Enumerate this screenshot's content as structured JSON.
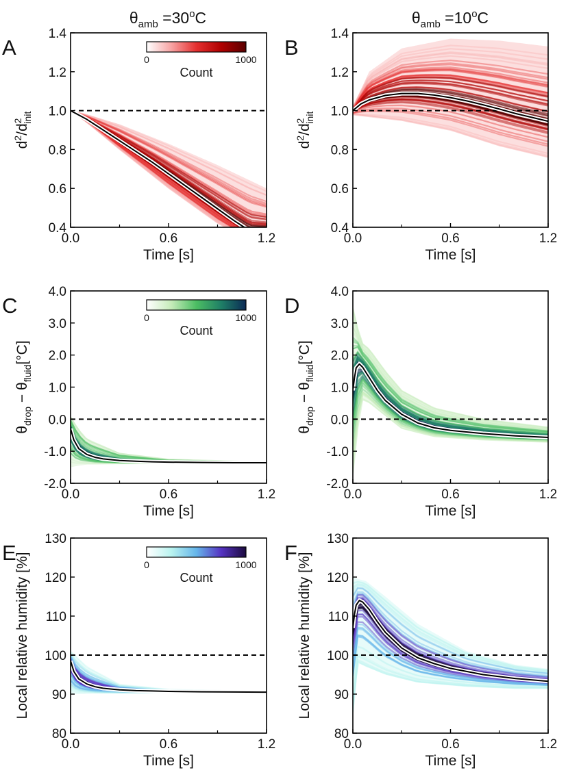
{
  "columns": [
    {
      "var": "θ",
      "sub": "amb",
      "value": "=30",
      "sup": "o",
      "unit": "C"
    },
    {
      "var": "θ",
      "sub": "amb",
      "value": "=10",
      "sup": "o",
      "unit": "C"
    }
  ],
  "colors": {
    "red": [
      "#ffffff",
      "#f7a3a3",
      "#e53030",
      "#b00000",
      "#5a0000"
    ],
    "green": [
      "#ffffff",
      "#c5ebb9",
      "#4cbd63",
      "#1f7f66",
      "#0b2a55"
    ],
    "purple": [
      "#ffffff",
      "#b9f3ef",
      "#66b6ea",
      "#5533c2",
      "#1c0a3e"
    ],
    "median": "#000000",
    "reference": "#000000"
  },
  "chart_data": [
    {
      "id": "A",
      "row": 0,
      "col": 0,
      "type": "line",
      "cmap": "red",
      "density_seed": 11,
      "xlabel": "Time [s]",
      "ylabel": "d²/d²init",
      "ylabel_parts": {
        "base": "d",
        "sup": "2",
        "mid": "/d",
        "sup2": "2",
        "sub2": "init"
      },
      "xlim": [
        0,
        1.2
      ],
      "ylim": [
        0.4,
        1.4
      ],
      "xticks": [
        "0.0",
        "0.6",
        "1.2"
      ],
      "xtick_values": [
        0,
        0.6,
        1.2
      ],
      "yticks": [
        "0.4",
        "0.6",
        "0.8",
        "1.0",
        "1.2",
        "1.4"
      ],
      "ytick_values": [
        0.4,
        0.6,
        0.8,
        1.0,
        1.2,
        1.4
      ],
      "reference_line": {
        "y": 1.0,
        "style": "dashed"
      },
      "median": {
        "x": [
          0,
          0.1,
          0.2,
          0.3,
          0.4,
          0.5,
          0.6,
          0.7,
          0.8,
          0.9,
          1.0,
          1.1
        ],
        "y": [
          1.0,
          0.955,
          0.9,
          0.845,
          0.79,
          0.735,
          0.675,
          0.615,
          0.555,
          0.495,
          0.435,
          0.38
        ]
      },
      "spread": {
        "x": [
          0,
          0.1,
          0.3,
          0.6,
          0.9,
          1.2
        ],
        "lo": [
          1.0,
          0.94,
          0.8,
          0.6,
          0.42,
          0.28
        ],
        "hi": [
          1.0,
          0.98,
          0.93,
          0.83,
          0.72,
          0.6
        ]
      },
      "colorbar": {
        "label": "Count",
        "min": "0",
        "max": "1000"
      }
    },
    {
      "id": "B",
      "row": 0,
      "col": 1,
      "type": "line",
      "cmap": "red",
      "density_seed": 23,
      "xlabel": "Time [s]",
      "ylabel": "d²/d²init",
      "ylabel_parts": {
        "base": "d",
        "sup": "2",
        "mid": "/d",
        "sup2": "2",
        "sub2": "init"
      },
      "xlim": [
        0,
        1.2
      ],
      "ylim": [
        0.4,
        1.4
      ],
      "xticks": [
        "0.0",
        "0.6",
        "1.2"
      ],
      "xtick_values": [
        0,
        0.6,
        1.2
      ],
      "yticks": [
        "0.4",
        "0.6",
        "0.8",
        "1.0",
        "1.2",
        "1.4"
      ],
      "ytick_values": [
        0.4,
        0.6,
        0.8,
        1.0,
        1.2,
        1.4
      ],
      "reference_line": {
        "y": 1.0,
        "style": "dashed"
      },
      "median": {
        "x": [
          0,
          0.05,
          0.1,
          0.2,
          0.3,
          0.4,
          0.5,
          0.6,
          0.7,
          0.8,
          0.9,
          1.0,
          1.1,
          1.2
        ],
        "y": [
          1.0,
          1.035,
          1.055,
          1.078,
          1.088,
          1.088,
          1.08,
          1.067,
          1.05,
          1.03,
          1.008,
          0.985,
          0.965,
          0.945
        ]
      },
      "spread": {
        "x": [
          0,
          0.1,
          0.3,
          0.6,
          0.9,
          1.2
        ],
        "lo": [
          0.98,
          0.97,
          0.95,
          0.9,
          0.82,
          0.76
        ],
        "hi": [
          1.02,
          1.2,
          1.32,
          1.37,
          1.36,
          1.33
        ]
      },
      "colorbar": null
    },
    {
      "id": "C",
      "row": 1,
      "col": 0,
      "type": "line",
      "cmap": "green",
      "density_seed": 37,
      "xlabel": "Time [s]",
      "ylabel": "θdrop − θfluid[°C]",
      "ylabel_parts": {
        "a": "θ",
        "asub": "drop",
        "op": " − θ",
        "bsub": "fluid",
        "unit": "[°C]"
      },
      "xlim": [
        0,
        1.2
      ],
      "ylim": [
        -2.0,
        4.0
      ],
      "xticks": [
        "0.0",
        "0.6",
        "1.2"
      ],
      "xtick_values": [
        0,
        0.6,
        1.2
      ],
      "yticks": [
        "-2.0",
        "-1.0",
        "0.0",
        "1.0",
        "2.0",
        "3.0",
        "4.0"
      ],
      "ytick_values": [
        -2,
        -1,
        0,
        1,
        2,
        3,
        4
      ],
      "reference_line": {
        "y": 0.0,
        "style": "dashed"
      },
      "median": {
        "x": [
          0,
          0.02,
          0.05,
          0.1,
          0.15,
          0.2,
          0.3,
          0.4,
          0.5,
          0.6,
          0.8,
          1.0,
          1.2
        ],
        "y": [
          -0.3,
          -0.65,
          -0.92,
          -1.1,
          -1.19,
          -1.24,
          -1.29,
          -1.31,
          -1.33,
          -1.34,
          -1.35,
          -1.36,
          -1.36
        ]
      },
      "spread": {
        "x": [
          0,
          0.05,
          0.1,
          0.3,
          0.6,
          1.2
        ],
        "lo": [
          -1.5,
          -1.45,
          -1.42,
          -1.4,
          -1.38,
          -1.37
        ],
        "hi": [
          0.1,
          -0.3,
          -0.6,
          -1.05,
          -1.25,
          -1.34
        ]
      },
      "colorbar": {
        "label": "Count",
        "min": "0",
        "max": "1000"
      }
    },
    {
      "id": "D",
      "row": 1,
      "col": 1,
      "type": "line",
      "cmap": "green",
      "density_seed": 41,
      "xlabel": "Time [s]",
      "ylabel": "θdrop − θfluid[°C]",
      "ylabel_parts": {
        "a": "θ",
        "asub": "drop",
        "op": " − θ",
        "bsub": "fluid",
        "unit": "[°C]"
      },
      "xlim": [
        0,
        1.2
      ],
      "ylim": [
        -2.0,
        4.0
      ],
      "xticks": [
        "0.0",
        "0.6",
        "1.2"
      ],
      "xtick_values": [
        0,
        0.6,
        1.2
      ],
      "yticks": [
        "-2.0",
        "-1.0",
        "0.0",
        "1.0",
        "2.0",
        "3.0",
        "4.0"
      ],
      "ytick_values": [
        -2,
        -1,
        0,
        1,
        2,
        3,
        4
      ],
      "reference_line": {
        "y": 0.0,
        "style": "dashed"
      },
      "median": {
        "x": [
          0,
          0.01,
          0.02,
          0.04,
          0.06,
          0.1,
          0.15,
          0.2,
          0.3,
          0.4,
          0.5,
          0.6,
          0.8,
          1.0,
          1.2
        ],
        "y": [
          0.9,
          1.3,
          1.6,
          1.72,
          1.62,
          1.3,
          0.9,
          0.58,
          0.15,
          -0.12,
          -0.27,
          -0.35,
          -0.45,
          -0.52,
          -0.57
        ]
      },
      "spread": {
        "x": [
          0,
          0.05,
          0.1,
          0.2,
          0.3,
          0.5,
          0.8,
          1.2
        ],
        "lo": [
          -1.8,
          0.6,
          0.5,
          0.1,
          -0.3,
          -0.55,
          -0.65,
          -0.72
        ],
        "hi": [
          3.5,
          2.4,
          2.2,
          1.5,
          0.9,
          0.35,
          0.0,
          -0.25
        ]
      },
      "colorbar": null
    },
    {
      "id": "E",
      "row": 2,
      "col": 0,
      "type": "line",
      "cmap": "purple",
      "density_seed": 53,
      "xlabel": "Time [s]",
      "ylabel": "Local relative humidity [%]",
      "xlim": [
        0,
        1.2
      ],
      "ylim": [
        80,
        130
      ],
      "xticks": [
        "0.0",
        "0.6",
        "1.2"
      ],
      "xtick_values": [
        0,
        0.6,
        1.2
      ],
      "yticks": [
        "80",
        "90",
        "100",
        "110",
        "120",
        "130"
      ],
      "ytick_values": [
        80,
        90,
        100,
        110,
        120,
        130
      ],
      "reference_line": {
        "y": 100,
        "style": "dashed"
      },
      "median": {
        "x": [
          0,
          0.02,
          0.05,
          0.1,
          0.15,
          0.2,
          0.3,
          0.4,
          0.5,
          0.6,
          0.8,
          1.0,
          1.2
        ],
        "y": [
          98.5,
          95.8,
          93.9,
          92.6,
          91.9,
          91.5,
          91.1,
          90.9,
          90.8,
          90.7,
          90.6,
          90.55,
          90.5
        ]
      },
      "spread": {
        "x": [
          0,
          0.05,
          0.1,
          0.3,
          0.6,
          1.2
        ],
        "lo": [
          90.0,
          90.0,
          90.1,
          90.2,
          90.4,
          90.45
        ],
        "hi": [
          101,
          99,
          97,
          92.5,
          91.2,
          90.6
        ]
      },
      "colorbar": {
        "label": "Count",
        "min": "0",
        "max": "1000"
      }
    },
    {
      "id": "F",
      "row": 2,
      "col": 1,
      "type": "line",
      "cmap": "purple",
      "density_seed": 67,
      "xlabel": "Time [s]",
      "ylabel": "Local relative humidity [%]",
      "xlim": [
        0,
        1.2
      ],
      "ylim": [
        80,
        130
      ],
      "xticks": [
        "0.0",
        "0.6",
        "1.2"
      ],
      "xtick_values": [
        0,
        0.6,
        1.2
      ],
      "yticks": [
        "80",
        "90",
        "100",
        "110",
        "120",
        "130"
      ],
      "ytick_values": [
        80,
        90,
        100,
        110,
        120,
        130
      ],
      "reference_line": {
        "y": 100,
        "style": "dashed"
      },
      "median": {
        "x": [
          0,
          0.01,
          0.02,
          0.04,
          0.06,
          0.1,
          0.15,
          0.2,
          0.3,
          0.4,
          0.5,
          0.6,
          0.8,
          1.0,
          1.2
        ],
        "y": [
          107,
          110.5,
          112.8,
          114,
          113.6,
          111.7,
          108.6,
          105.8,
          101.8,
          99.3,
          97.8,
          96.6,
          95.0,
          94.0,
          93.3
        ]
      },
      "spread": {
        "x": [
          0,
          0.03,
          0.08,
          0.2,
          0.4,
          0.7,
          1.0,
          1.2
        ],
        "lo": [
          85,
          98,
          97,
          95,
          93,
          92,
          91.5,
          91.5
        ],
        "hi": [
          120,
          119.5,
          119,
          115,
          108,
          101,
          97.5,
          96.5
        ]
      },
      "colorbar": null
    }
  ]
}
